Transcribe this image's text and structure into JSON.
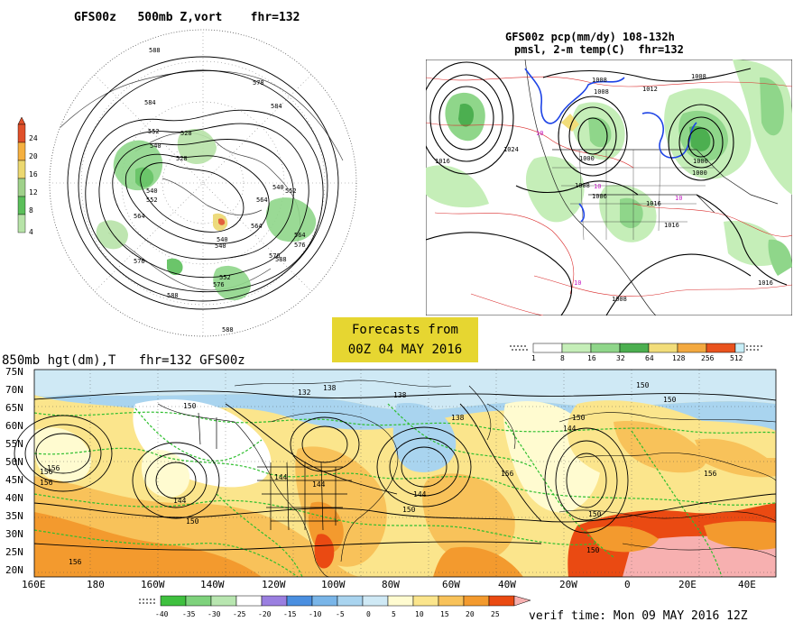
{
  "panel_500mb": {
    "title": "GFS00z   500mb Z,vort    fhr=132",
    "legend_ticks": [
      "24",
      "20",
      "16",
      "12",
      "8",
      "4"
    ],
    "legend_colors": [
      "#e0502a",
      "#f5b040",
      "#ecd870",
      "#9fd18a",
      "#5bbf5a",
      "#b7e3a8"
    ],
    "contour_labels": [
      "588",
      "578",
      "584",
      "552",
      "540",
      "528",
      "540",
      "552",
      "564",
      "576",
      "588",
      "540",
      "564",
      "576",
      "552",
      "540",
      "528",
      "584",
      "564",
      "576",
      "552",
      "540",
      "564",
      "576",
      "588",
      "588"
    ]
  },
  "panel_pcp": {
    "title_line1": "GFS00z pcp(mm/dy) 108-132h",
    "title_line2": "pmsl, 2-m temp(C)  fhr=132",
    "pressure_labels": [
      "1016",
      "1024",
      "1008",
      "1000",
      "1012",
      "1008",
      "1000",
      "1008",
      "1006",
      "1016",
      "1000",
      "1008",
      "1016",
      "1008",
      "1016"
    ],
    "temp_labels": [
      "10",
      "10",
      "10",
      "10"
    ],
    "legend_ticks": [
      "1",
      "8",
      "16",
      "32",
      "64",
      "128",
      "256",
      "512"
    ],
    "legend_colors": [
      "#ffffff",
      "#c5eeb8",
      "#8fd68a",
      "#4caf50",
      "#f2dd7a",
      "#f3a940",
      "#e9531e",
      "#c7eef7"
    ]
  },
  "banner": {
    "line1": "Forecasts from",
    "line2": "00Z 04 MAY 2016"
  },
  "panel_850mb": {
    "title": "850mb hgt(dm),T   fhr=132 GFS00z",
    "y_ticks": [
      "75N",
      "70N",
      "65N",
      "60N",
      "55N",
      "50N",
      "45N",
      "40N",
      "35N",
      "30N",
      "25N",
      "20N"
    ],
    "x_ticks": [
      "160E",
      "180",
      "160W",
      "140W",
      "120W",
      "100W",
      "80W",
      "60W",
      "40W",
      "20W",
      "0",
      "20E",
      "40E"
    ],
    "contour_labels": [
      "138",
      "138",
      "138",
      "150",
      "150",
      "150",
      "144",
      "144",
      "150",
      "156",
      "144",
      "156",
      "150",
      "156",
      "150",
      "132",
      "144",
      "144",
      "156",
      "150",
      "156",
      "150",
      "156"
    ],
    "legend_ticks": [
      "-40",
      "-35",
      "-30",
      "-25",
      "-20",
      "-15",
      "-10",
      "-5",
      "0",
      "5",
      "10",
      "15",
      "20",
      "25"
    ],
    "legend_colors": [
      "#3fc03f",
      "#7ed27c",
      "#b8e6b0",
      "#9a7fe0",
      "#4a8fe0",
      "#79b5e8",
      "#a9d4ef",
      "#cfe9f5",
      "#fffbd0",
      "#fbe58c",
      "#f8c25a",
      "#f39a2e",
      "#ea4a12",
      "#f7b0b0"
    ],
    "verif_time": "verif time: Mon 09 MAY 2016 12Z"
  }
}
